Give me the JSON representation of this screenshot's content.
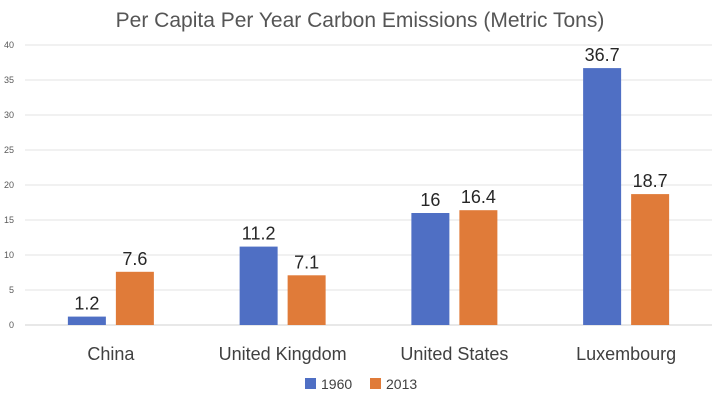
{
  "chart_data": {
    "type": "bar",
    "title": "Per Capita Per Year Carbon Emissions (Metric Tons)",
    "categories": [
      "China",
      "United Kingdom",
      "United States",
      "Luxembourg"
    ],
    "series": [
      {
        "name": "1960",
        "values": [
          1.2,
          11.2,
          16,
          36.7
        ],
        "labels": [
          "1.2",
          "11.2",
          "16",
          "36.7"
        ],
        "color": "#4f6fc4"
      },
      {
        "name": "2013",
        "values": [
          7.6,
          7.1,
          16.4,
          18.7
        ],
        "labels": [
          "7.6",
          "7.1",
          "16.4",
          "18.7"
        ],
        "color": "#e07b39"
      }
    ],
    "ylim": [
      0,
      40
    ],
    "yticks": [
      "0",
      "5",
      "10",
      "15",
      "20",
      "25",
      "30",
      "35",
      "40"
    ],
    "xlabel": "",
    "ylabel": "",
    "grid": true,
    "legend_position": "bottom"
  }
}
